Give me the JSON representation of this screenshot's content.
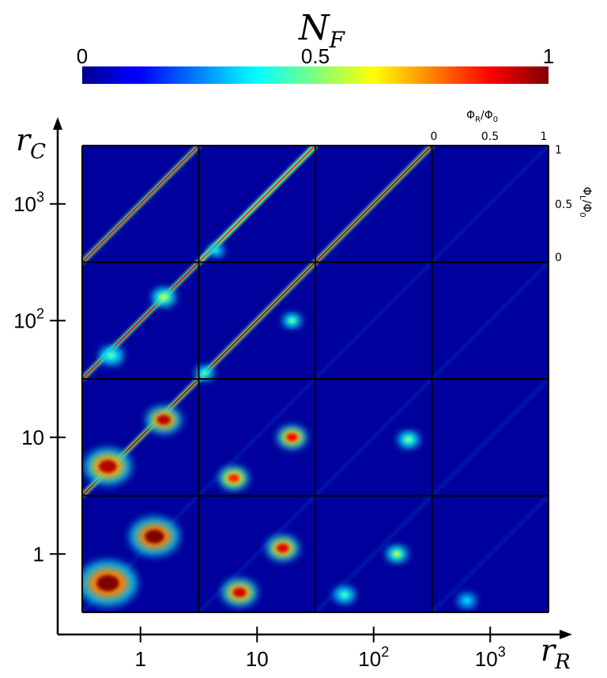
{
  "chart_data": {
    "type": "heatmap",
    "title": "N_F",
    "colorbar": {
      "label": "N_F",
      "colormap": "jet",
      "range": [
        0,
        1
      ],
      "ticks": [
        "0",
        "0.5",
        "1"
      ]
    },
    "x_axis": {
      "symbol": "r",
      "subscript": "R",
      "scale": "log",
      "ticks": [
        {
          "value": 1,
          "label": "1"
        },
        {
          "value": 10,
          "label": "10"
        },
        {
          "value": 100,
          "label": "10",
          "sup": "2"
        },
        {
          "value": 1000,
          "label": "10",
          "sup": "3"
        }
      ]
    },
    "y_axis": {
      "symbol": "r",
      "subscript": "C",
      "scale": "log",
      "ticks": [
        {
          "value": 1,
          "label": "1"
        },
        {
          "value": 10,
          "label": "10"
        },
        {
          "value": 100,
          "label": "10",
          "sup": "2"
        },
        {
          "value": 1000,
          "label": "10",
          "sup": "3"
        }
      ]
    },
    "panel_grid": {
      "columns": 4,
      "rows": 4
    },
    "inset_axes": {
      "x_label": "Φ_R/Φ_0",
      "x_ticks": [
        "0",
        "0.5",
        "1"
      ],
      "y_label": "Φ_L/Φ_0",
      "y_ticks": [
        "1",
        "0.5",
        "0"
      ]
    },
    "features": {
      "diagonal_lines": [
        {
          "panel_start": [
            0,
            1
          ],
          "offset": 0.0,
          "strength": 0.95
        },
        {
          "panel_start": [
            0,
            2
          ],
          "offset": 0.0,
          "strength": 0.9
        },
        {
          "panel_start": [
            0,
            3
          ],
          "offset": 0.0,
          "strength": 0.9
        },
        {
          "panel_start": [
            1,
            3
          ],
          "offset": 0.0,
          "strength": 0.85
        }
      ],
      "hot_spots": [
        {
          "col": 0,
          "row": 0,
          "u": 0.22,
          "v": 0.25,
          "level": 1.0,
          "size": 1.0
        },
        {
          "col": 0,
          "row": 0,
          "u": 0.62,
          "v": 0.65,
          "level": 1.0,
          "size": 0.85
        },
        {
          "col": 1,
          "row": 0,
          "u": 0.35,
          "v": 0.17,
          "level": 0.92,
          "size": 0.6
        },
        {
          "col": 1,
          "row": 0,
          "u": 0.72,
          "v": 0.55,
          "level": 0.9,
          "size": 0.55
        },
        {
          "col": 2,
          "row": 0,
          "u": 0.25,
          "v": 0.15,
          "level": 0.45,
          "size": 0.35
        },
        {
          "col": 2,
          "row": 0,
          "u": 0.7,
          "v": 0.5,
          "level": 0.55,
          "size": 0.35
        },
        {
          "col": 3,
          "row": 0,
          "u": 0.3,
          "v": 0.1,
          "level": 0.35,
          "size": 0.3
        },
        {
          "col": 0,
          "row": 1,
          "u": 0.22,
          "v": 0.25,
          "level": 0.95,
          "size": 0.8
        },
        {
          "col": 0,
          "row": 1,
          "u": 0.7,
          "v": 0.65,
          "level": 0.95,
          "size": 0.6
        },
        {
          "col": 1,
          "row": 1,
          "u": 0.3,
          "v": 0.15,
          "level": 0.85,
          "size": 0.5
        },
        {
          "col": 1,
          "row": 1,
          "u": 0.8,
          "v": 0.5,
          "level": 0.88,
          "size": 0.5
        },
        {
          "col": 2,
          "row": 1,
          "u": 0.8,
          "v": 0.48,
          "level": 0.5,
          "size": 0.35
        },
        {
          "col": 0,
          "row": 2,
          "u": 0.25,
          "v": 0.2,
          "level": 0.45,
          "size": 0.4
        },
        {
          "col": 0,
          "row": 2,
          "u": 0.7,
          "v": 0.7,
          "level": 0.55,
          "size": 0.4
        },
        {
          "col": 1,
          "row": 2,
          "u": 0.05,
          "v": 0.05,
          "level": 0.45,
          "size": 0.3
        },
        {
          "col": 1,
          "row": 2,
          "u": 0.8,
          "v": 0.5,
          "level": 0.5,
          "size": 0.3
        },
        {
          "col": 1,
          "row": 3,
          "u": 0.15,
          "v": 0.1,
          "level": 0.4,
          "size": 0.25
        }
      ]
    }
  }
}
